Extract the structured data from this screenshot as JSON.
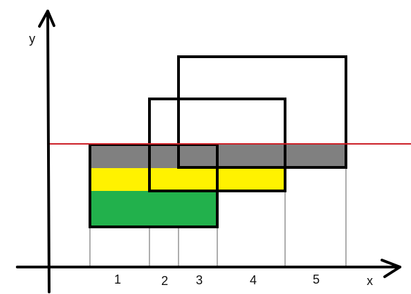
{
  "axes": {
    "x_label": "x",
    "y_label": "y"
  },
  "interval_labels": [
    "1",
    "2",
    "3",
    "4",
    "5"
  ],
  "colors": {
    "band_gray": "#808080",
    "band_yellow": "#fff200",
    "band_green": "#22b14c",
    "sweep_line": "#cc2027",
    "outline": "#000000",
    "guide": "#333333"
  }
}
